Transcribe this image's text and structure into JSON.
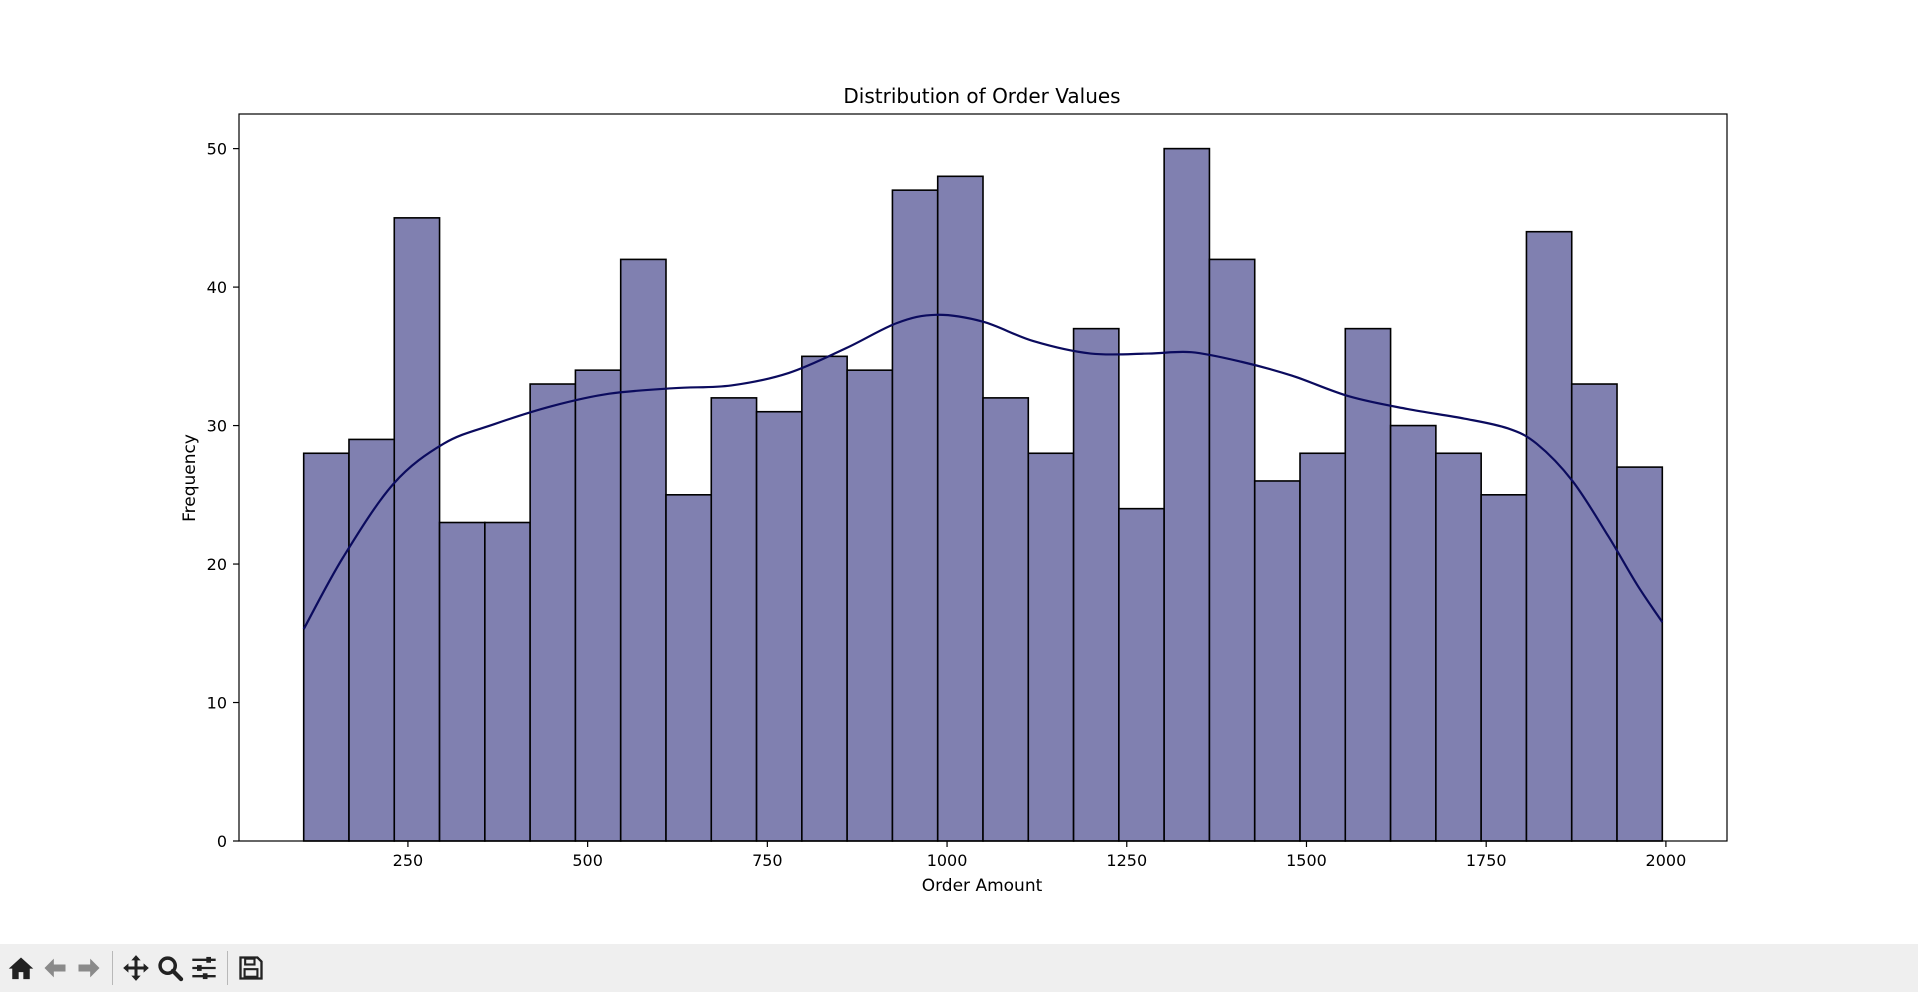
{
  "chart_data": {
    "type": "bar",
    "title": "Distribution of Order Values",
    "xlabel": "Order Amount",
    "ylabel": "Frequency",
    "xlim": [
      15,
      2085
    ],
    "ylim": [
      0,
      52.5
    ],
    "xticks": [
      250,
      500,
      750,
      1000,
      1250,
      1500,
      1750,
      2000
    ],
    "yticks": [
      0,
      10,
      20,
      30,
      40,
      50
    ],
    "bin_start": 105,
    "bin_width": 63,
    "values": [
      28,
      29,
      45,
      23,
      23,
      33,
      34,
      42,
      25,
      32,
      31,
      35,
      34,
      47,
      48,
      32,
      28,
      37,
      24,
      50,
      42,
      26,
      28,
      37,
      30,
      28,
      25,
      44,
      33,
      27
    ],
    "kde": {
      "x": [
        105,
        160,
        230,
        300,
        370,
        450,
        530,
        620,
        700,
        780,
        860,
        930,
        985,
        1050,
        1120,
        1200,
        1280,
        1340,
        1410,
        1480,
        1560,
        1640,
        1720,
        1780,
        1820,
        1870,
        1920,
        1960,
        1995
      ],
      "y": [
        15.3,
        20.5,
        25.8,
        28.7,
        30.1,
        31.4,
        32.3,
        32.7,
        32.9,
        33.8,
        35.6,
        37.4,
        38.0,
        37.5,
        36.1,
        35.2,
        35.2,
        35.3,
        34.6,
        33.6,
        32.1,
        31.2,
        30.5,
        29.8,
        28.7,
        26.0,
        22.0,
        18.5,
        15.8
      ]
    },
    "bar_color": "#8080b0",
    "edge_color": "#000000",
    "kde_color": "#0b0b5e",
    "grid": false
  },
  "toolbar": {
    "buttons": [
      "home-icon",
      "back-icon",
      "forward-icon",
      "pan-icon",
      "zoom-icon",
      "configure-icon",
      "save-icon"
    ]
  }
}
